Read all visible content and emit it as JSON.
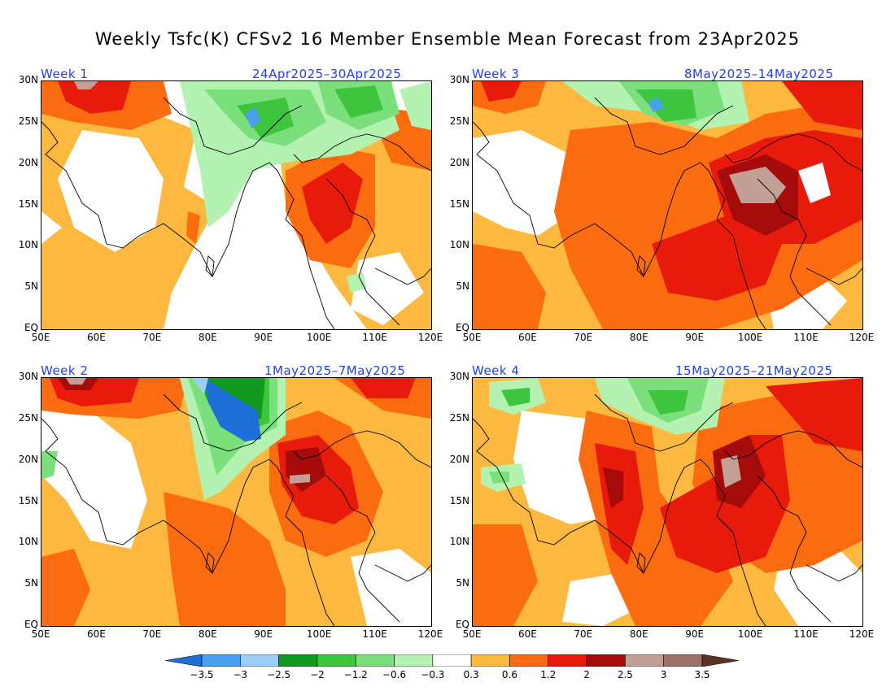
{
  "title": "Weekly Tsfc(K) CFSv2 16 Member Ensemble Mean Forecast from 23Apr2025",
  "axes": {
    "lat_labels": [
      "30N",
      "25N",
      "20N",
      "15N",
      "10N",
      "5N",
      "EQ"
    ],
    "lon_labels": [
      "50E",
      "60E",
      "70E",
      "80E",
      "90E",
      "100E",
      "110E",
      "120E"
    ]
  },
  "panels": [
    {
      "id": "week1",
      "label": "Week 1",
      "dates": "24Apr2025–30Apr2025"
    },
    {
      "id": "week3",
      "label": "Week 3",
      "dates": "8May2025–14May2025"
    },
    {
      "id": "week2",
      "label": "Week 2",
      "dates": "1May2025–7May2025"
    },
    {
      "id": "week4",
      "label": "Week 4",
      "dates": "15May2025–21May2025"
    }
  ],
  "colors": {
    "cool": [
      "#1e6fd8",
      "#4aa0f0",
      "#9ccff7",
      "#119a1e",
      "#3cc53d",
      "#7be07c",
      "#b4f2b1"
    ],
    "neutral": "#ffffff",
    "warm": [
      "#fdb93f",
      "#fb6c10",
      "#e81a0c",
      "#a50b0b",
      "#c49f95",
      "#9b7266",
      "#5e3123"
    ]
  },
  "legend": {
    "tick_labels": [
      "−3.5",
      "−3",
      "−2.5",
      "−2",
      "−1.2",
      "−0.6",
      "−0.3",
      "0.3",
      "0.6",
      "1.2",
      "2",
      "2.5",
      "3",
      "3.5"
    ]
  }
}
